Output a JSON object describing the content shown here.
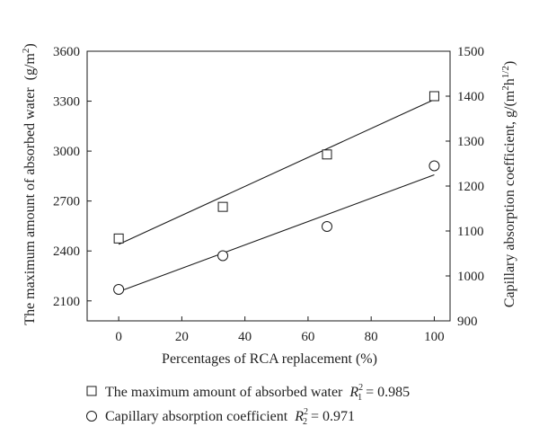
{
  "chart_data": {
    "type": "scatter",
    "xlabel": "Percentages of RCA replacement (%)",
    "ylabel_left": "The maximum amount of absorbed water",
    "ylabel_left_unit": "(g/m",
    "ylabel_left_unit_sup": "2",
    "ylabel_left_unit_close": ")",
    "ylabel_right_pre": "Capillary absorption coefficient, g/(m",
    "ylabel_right_sup1": "2",
    "ylabel_right_mid": "h",
    "ylabel_right_sup2": "1/2",
    "ylabel_right_post": ")",
    "xlim": [
      -10,
      105
    ],
    "ylim_left": [
      1980,
      3600
    ],
    "ylim_right": [
      900,
      1500
    ],
    "x_ticks": [
      "0",
      "20",
      "40",
      "60",
      "80",
      "100"
    ],
    "y_left_ticks": [
      "2100",
      "2400",
      "2700",
      "3000",
      "3300",
      "3600"
    ],
    "y_right_ticks": [
      "900",
      "1000",
      "1100",
      "1200",
      "1300",
      "1400",
      "1500"
    ],
    "grid": false,
    "legend_position": "bottom",
    "series": [
      {
        "name": "The maximum amount of absorbed water",
        "r2_symbol": "R",
        "r2_sup": "2",
        "r2_sub": "1",
        "r2_value": " = 0.985",
        "marker": "square",
        "axis": "left",
        "x": [
          0,
          33,
          66,
          100
        ],
        "y": [
          2475,
          2665,
          2980,
          3330
        ],
        "fit": {
          "x": [
            0,
            100
          ],
          "y": [
            2440,
            3310
          ]
        }
      },
      {
        "name": "Capillary absorption coefficient",
        "r2_symbol": "R",
        "r2_sup": "2",
        "r2_sub": "2",
        "r2_value": " = 0.971",
        "marker": "circle",
        "axis": "right",
        "x": [
          0,
          33,
          66,
          100
        ],
        "y": [
          970,
          1045,
          1110,
          1245
        ],
        "fit": {
          "x": [
            0,
            100
          ],
          "y": [
            965,
            1225
          ]
        }
      }
    ]
  }
}
